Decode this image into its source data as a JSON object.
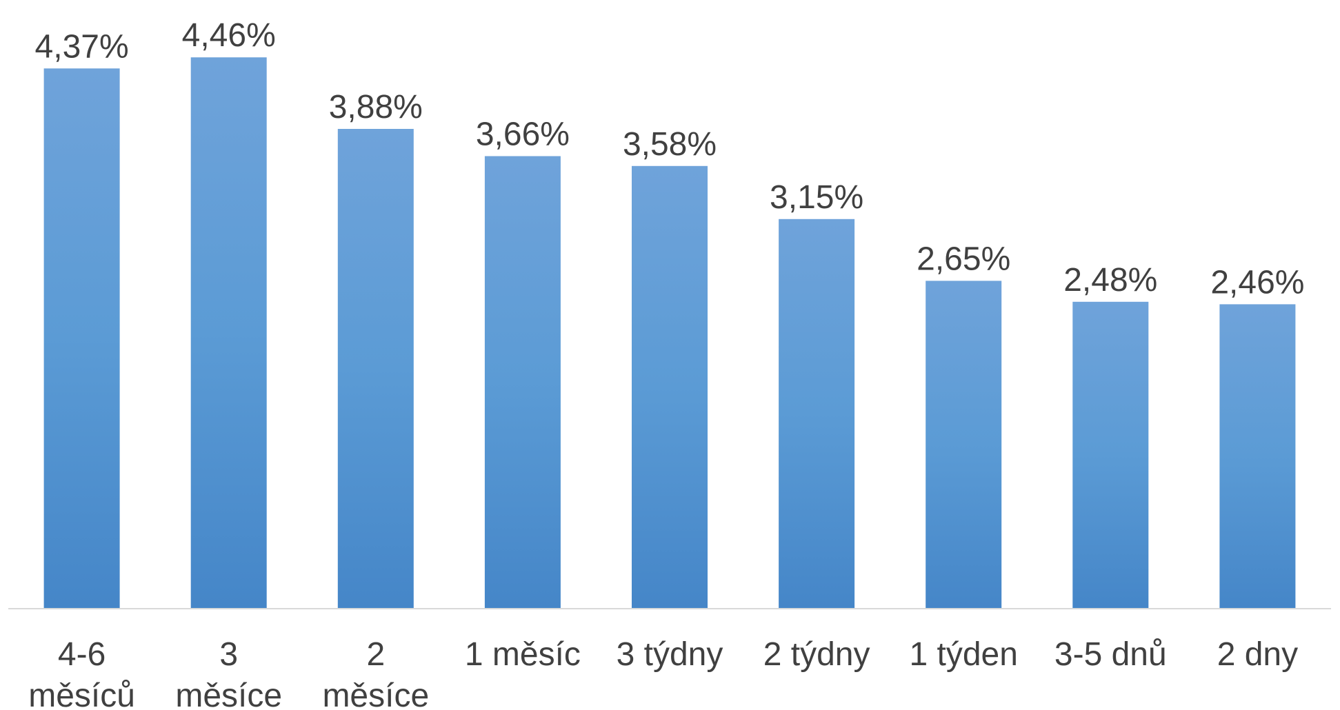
{
  "chart_data": {
    "type": "bar",
    "categories": [
      [
        "4-6",
        "měsíců"
      ],
      [
        "3",
        "měsíce"
      ],
      [
        "2",
        "měsíce"
      ],
      [
        "1 měsíc"
      ],
      [
        "3 týdny"
      ],
      [
        "2 týdny"
      ],
      [
        "1 týden"
      ],
      [
        "3-5 dnů"
      ],
      [
        "2 dny"
      ]
    ],
    "values": [
      4.37,
      4.46,
      3.88,
      3.66,
      3.58,
      3.15,
      2.65,
      2.48,
      2.46
    ],
    "value_labels": [
      "4,37%",
      "4,46%",
      "3,88%",
      "3,66%",
      "3,58%",
      "3,15%",
      "2,65%",
      "2,48%",
      "2,46%"
    ],
    "ylim": [
      0,
      4.5
    ],
    "grid": false,
    "legend": "none",
    "colors": {
      "bar_top": "#6FA3DA",
      "bar_mid": "#5B9BD5",
      "bar_bottom": "#4586C8",
      "axis": "#D9D9D9",
      "text": "#404040"
    }
  }
}
